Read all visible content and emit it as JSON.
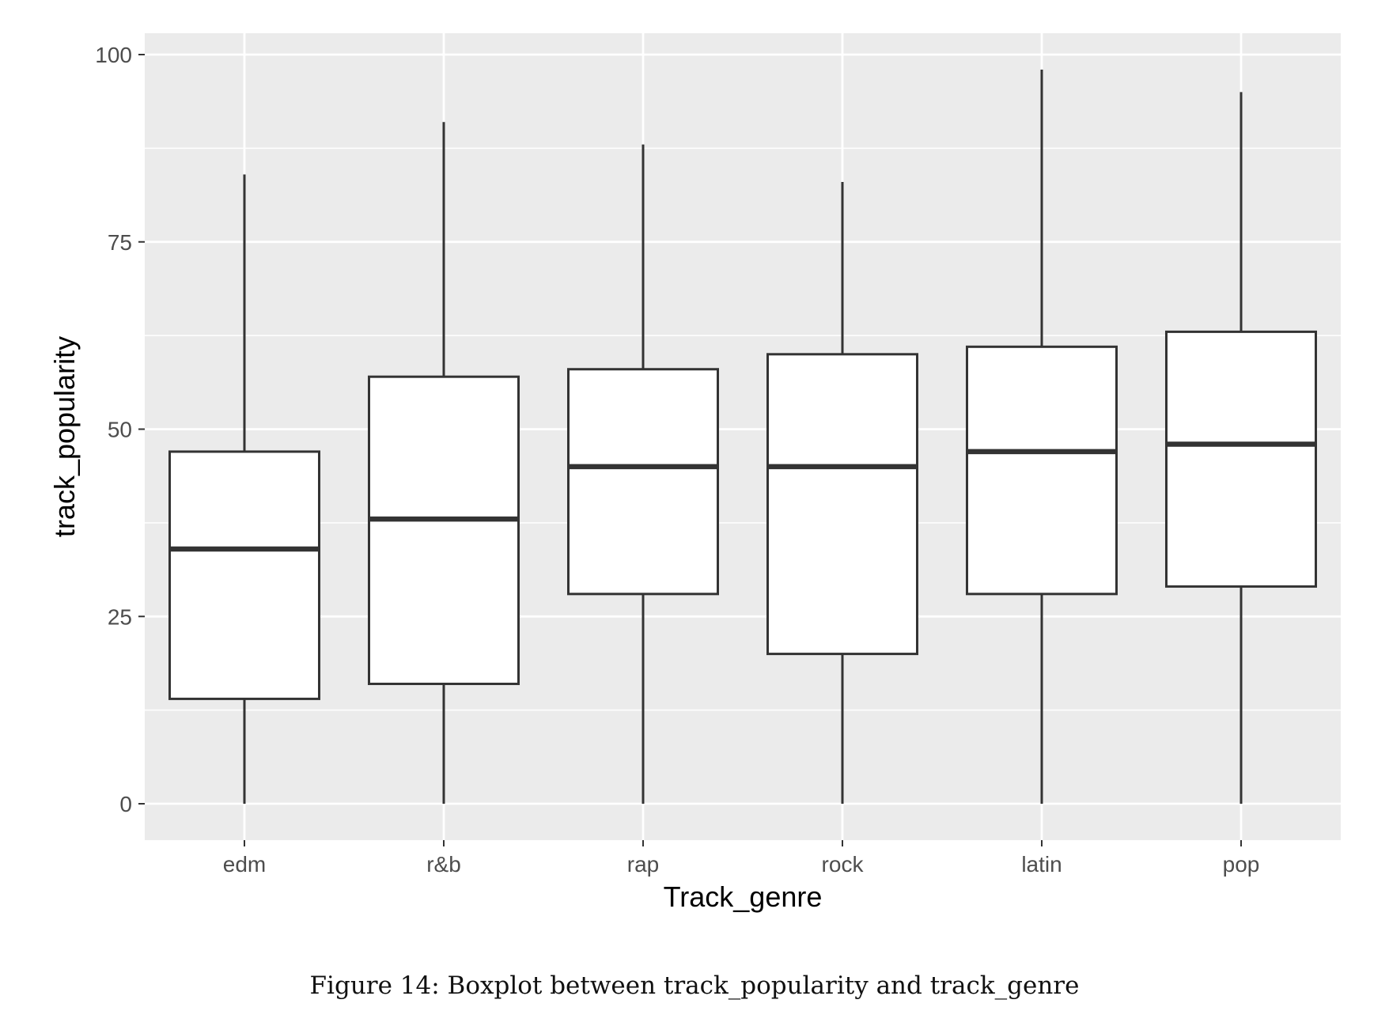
{
  "chart_data": {
    "type": "boxplot",
    "title": "",
    "xlabel": "Track_genre",
    "ylabel": "track_popularity",
    "ylim": [
      -5,
      105.5
    ],
    "yticks": [
      0,
      25,
      50,
      75,
      100
    ],
    "grid": true,
    "background": "#ebebeb",
    "categories": [
      "edm",
      "r&b",
      "rap",
      "rock",
      "latin",
      "pop"
    ],
    "boxes": [
      {
        "category": "edm",
        "min": 0,
        "q1": 14,
        "median": 34,
        "q3": 47,
        "max": 84
      },
      {
        "category": "r&b",
        "min": 0,
        "q1": 16,
        "median": 38,
        "q3": 57,
        "max": 91
      },
      {
        "category": "rap",
        "min": 0,
        "q1": 28,
        "median": 45,
        "q3": 58,
        "max": 88
      },
      {
        "category": "rock",
        "min": 0,
        "q1": 20,
        "median": 45,
        "q3": 60,
        "max": 83
      },
      {
        "category": "latin",
        "min": 0,
        "q1": 28,
        "median": 47,
        "q3": 61,
        "max": 98
      },
      {
        "category": "pop",
        "min": 0,
        "q1": 29,
        "median": 48,
        "q3": 63,
        "max": 95
      }
    ]
  },
  "caption": "Figure 14: Boxplot between track_popularity and track_genre"
}
